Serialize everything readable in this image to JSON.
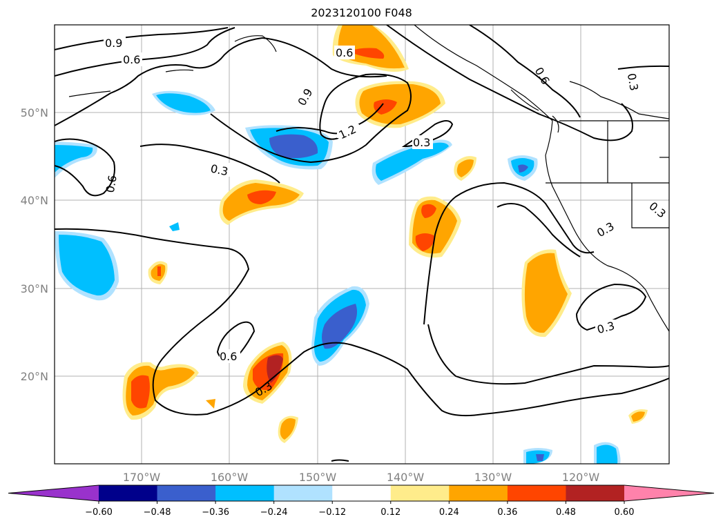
{
  "title": "2023120100 F048",
  "lat_ticks": [
    "50°N",
    "40°N",
    "30°N",
    "20°N"
  ],
  "lon_ticks": [
    "170°W",
    "160°W",
    "150°W",
    "140°W",
    "130°W",
    "120°W"
  ],
  "colorbar": {
    "ticks": [
      "−0.60",
      "−0.48",
      "−0.36",
      "−0.24",
      "−0.12",
      "0.12",
      "0.24",
      "0.36",
      "0.48",
      "0.60"
    ],
    "colors": [
      "#9932cc",
      "#00008b",
      "#3a5fcd",
      "#00bfff",
      "#b0e2ff",
      "#ffffff",
      "#ffec8b",
      "#ffa500",
      "#ff4500",
      "#b22222",
      "#ff82ab"
    ]
  },
  "contour_labels": [
    "0.9",
    "0.6",
    "0.6",
    "0.9",
    "1.2",
    "0.3",
    "0.3",
    "0.6",
    "0.6",
    "0.3",
    "0.3",
    "0.3",
    "0.6",
    "0.3",
    "0.3"
  ]
}
